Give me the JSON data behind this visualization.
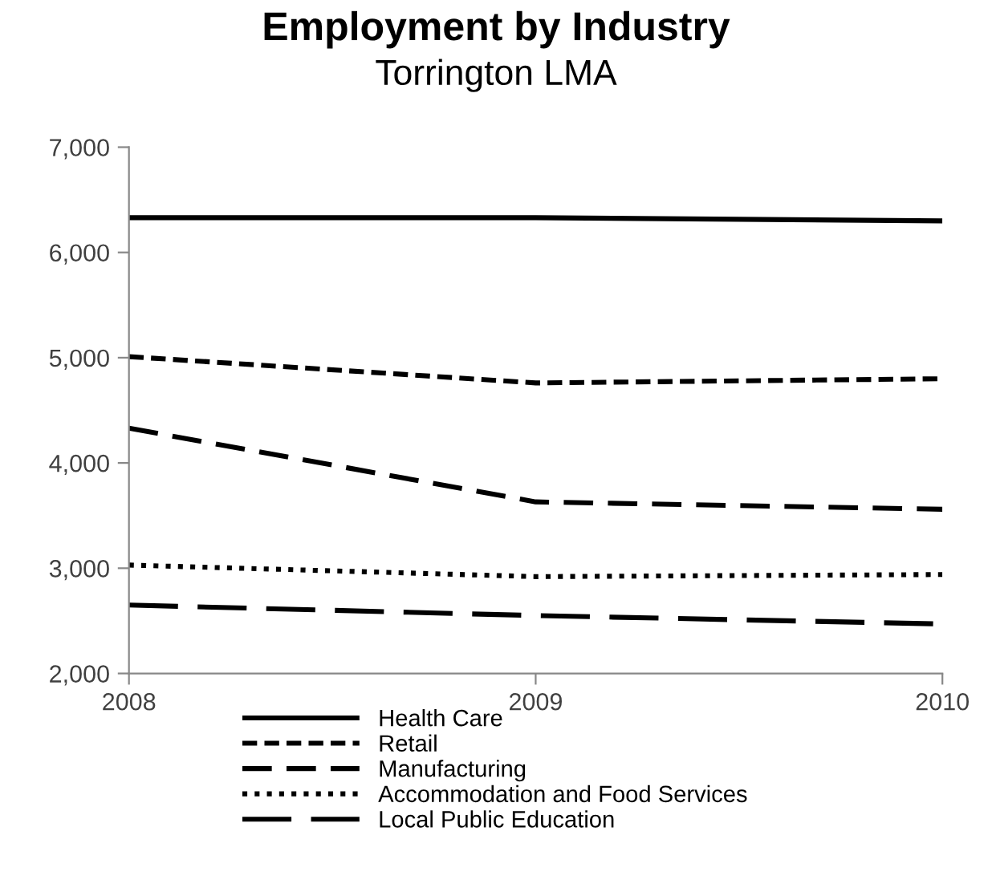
{
  "chart_data": {
    "type": "line",
    "title": "Employment by Industry",
    "subtitle": "Torrington LMA",
    "x": [
      2008,
      2009,
      2010
    ],
    "xlim": [
      2008,
      2010
    ],
    "xticks": [
      2008,
      2009,
      2010
    ],
    "ylim": [
      2000,
      7000
    ],
    "yticks": [
      {
        "value": 2000,
        "label": "2,000"
      },
      {
        "value": 3000,
        "label": "3,000"
      },
      {
        "value": 4000,
        "label": "4,000"
      },
      {
        "value": 5000,
        "label": "5,000"
      },
      {
        "value": 6000,
        "label": "6,000"
      },
      {
        "value": 7000,
        "label": "7,000"
      }
    ],
    "grid": false,
    "legend": "bottom",
    "marker": "none",
    "series": [
      {
        "name": "Health Care",
        "color": "#000000",
        "line_style": "solid",
        "values": [
          6330,
          6330,
          6300
        ]
      },
      {
        "name": "Retail",
        "color": "#000000",
        "line_style": "short dashed",
        "values": [
          5010,
          4760,
          4800
        ]
      },
      {
        "name": "Manufacturing",
        "color": "#000000",
        "line_style": "dashed",
        "values": [
          4330,
          3630,
          3560
        ]
      },
      {
        "name": "Accommodation and Food Services",
        "color": "#000000",
        "line_style": "dotted",
        "values": [
          3030,
          2920,
          2940
        ]
      },
      {
        "name": "Local Public Education",
        "color": "#000000",
        "line_style": "long dashed",
        "values": [
          2650,
          2550,
          2470
        ]
      }
    ]
  }
}
